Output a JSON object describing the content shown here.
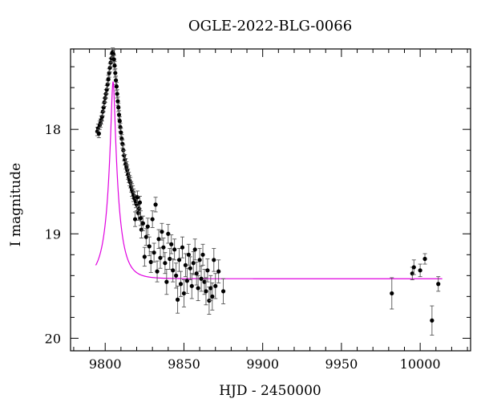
{
  "chart_data": {
    "type": "scatter",
    "title": "OGLE-2022-BLG-0066",
    "xlabel": "HJD - 2450000",
    "ylabel": "I magnitude",
    "xlim": [
      9778,
      10032
    ],
    "ylim": [
      17.23,
      20.12
    ],
    "y_inverted": true,
    "x_ticks": [
      9800,
      9850,
      9900,
      9950,
      10000
    ],
    "y_ticks": [
      18,
      19,
      20
    ],
    "grid": false,
    "colors": {
      "points": "#000000",
      "model": "#e000e0"
    },
    "series": [
      {
        "type": "errorbar-points",
        "points": [
          [
            9795.0,
            18.02,
            0.04
          ],
          [
            9795.5,
            17.99,
            0.04
          ],
          [
            9796.0,
            18.04,
            0.04
          ],
          [
            9796.5,
            17.96,
            0.04
          ],
          [
            9797.0,
            17.94,
            0.04
          ],
          [
            9797.5,
            17.91,
            0.04
          ],
          [
            9798.0,
            17.88,
            0.04
          ],
          [
            9798.5,
            17.83,
            0.04
          ],
          [
            9799.0,
            17.79,
            0.04
          ],
          [
            9799.5,
            17.74,
            0.04
          ],
          [
            9800.0,
            17.7,
            0.04
          ],
          [
            9800.5,
            17.66,
            0.04
          ],
          [
            9801.0,
            17.62,
            0.04
          ],
          [
            9801.5,
            17.57,
            0.04
          ],
          [
            9802.0,
            17.52,
            0.04
          ],
          [
            9802.5,
            17.46,
            0.04
          ],
          [
            9803.0,
            17.41,
            0.04
          ],
          [
            9803.5,
            17.36,
            0.04
          ],
          [
            9804.0,
            17.32,
            0.04
          ],
          [
            9804.4,
            17.27,
            0.04
          ],
          [
            9804.8,
            17.26,
            0.04
          ],
          [
            9805.2,
            17.28,
            0.04
          ],
          [
            9805.6,
            17.33,
            0.04
          ],
          [
            9806.0,
            17.39,
            0.04
          ],
          [
            9806.4,
            17.46,
            0.04
          ],
          [
            9806.8,
            17.53,
            0.04
          ],
          [
            9807.2,
            17.59,
            0.04
          ],
          [
            9807.6,
            17.66,
            0.04
          ],
          [
            9808.0,
            17.73,
            0.04
          ],
          [
            9808.4,
            17.79,
            0.04
          ],
          [
            9808.8,
            17.86,
            0.04
          ],
          [
            9809.2,
            17.92,
            0.04
          ],
          [
            9809.6,
            17.98,
            0.04
          ],
          [
            9810.0,
            18.03,
            0.04
          ],
          [
            9810.5,
            18.09,
            0.04
          ],
          [
            9811.0,
            18.14,
            0.04
          ],
          [
            9811.5,
            18.2,
            0.05
          ],
          [
            9812.0,
            18.25,
            0.05
          ],
          [
            9812.5,
            18.29,
            0.05
          ],
          [
            9813.0,
            18.33,
            0.05
          ],
          [
            9813.5,
            18.36,
            0.05
          ],
          [
            9814.0,
            18.39,
            0.05
          ],
          [
            9814.5,
            18.43,
            0.05
          ],
          [
            9815.0,
            18.46,
            0.05
          ],
          [
            9815.5,
            18.49,
            0.05
          ],
          [
            9816.0,
            18.51,
            0.05
          ],
          [
            9816.5,
            18.55,
            0.05
          ],
          [
            9817.0,
            18.58,
            0.06
          ],
          [
            9817.5,
            18.6,
            0.06
          ],
          [
            9818.0,
            18.63,
            0.06
          ],
          [
            9818.5,
            18.66,
            0.06
          ],
          [
            9819.0,
            18.86,
            0.07
          ],
          [
            9819.5,
            18.69,
            0.06
          ],
          [
            9820.0,
            18.72,
            0.06
          ],
          [
            9820.5,
            18.65,
            0.06
          ],
          [
            9821.0,
            18.8,
            0.07
          ],
          [
            9821.5,
            18.76,
            0.06
          ],
          [
            9822.0,
            18.7,
            0.06
          ],
          [
            9822.5,
            18.85,
            0.07
          ],
          [
            9823.0,
            18.96,
            0.08
          ],
          [
            9824.0,
            18.9,
            0.07
          ],
          [
            9825.0,
            19.22,
            0.09
          ],
          [
            9826.0,
            19.03,
            0.08
          ],
          [
            9827.0,
            18.93,
            0.08
          ],
          [
            9828.0,
            19.12,
            0.09
          ],
          [
            9829.0,
            19.27,
            0.1
          ],
          [
            9830.0,
            18.86,
            0.08
          ],
          [
            9831.0,
            19.18,
            0.09
          ],
          [
            9832.0,
            18.72,
            0.07
          ],
          [
            9833.0,
            19.36,
            0.1
          ],
          [
            9834.0,
            19.05,
            0.09
          ],
          [
            9835.0,
            19.23,
            0.1
          ],
          [
            9836.0,
            18.98,
            0.08
          ],
          [
            9837.0,
            19.13,
            0.09
          ],
          [
            9838.0,
            19.28,
            0.1
          ],
          [
            9839.0,
            19.46,
            0.12
          ],
          [
            9840.0,
            19.0,
            0.09
          ],
          [
            9841.0,
            19.24,
            0.1
          ],
          [
            9842.0,
            19.1,
            0.09
          ],
          [
            9843.0,
            19.35,
            0.11
          ],
          [
            9844.0,
            19.15,
            0.1
          ],
          [
            9845.0,
            19.4,
            0.12
          ],
          [
            9846.0,
            19.63,
            0.13
          ],
          [
            9847.0,
            19.25,
            0.11
          ],
          [
            9848.0,
            19.48,
            0.12
          ],
          [
            9849.0,
            19.13,
            0.1
          ],
          [
            9850.0,
            19.57,
            0.13
          ],
          [
            9851.0,
            19.3,
            0.11
          ],
          [
            9852.0,
            19.45,
            0.12
          ],
          [
            9853.0,
            19.2,
            0.1
          ],
          [
            9854.0,
            19.33,
            0.11
          ],
          [
            9855.0,
            19.5,
            0.12
          ],
          [
            9856.0,
            19.28,
            0.11
          ],
          [
            9857.0,
            19.15,
            0.1
          ],
          [
            9858.0,
            19.38,
            0.11
          ],
          [
            9859.0,
            19.52,
            0.12
          ],
          [
            9860.0,
            19.25,
            0.11
          ],
          [
            9861.0,
            19.43,
            0.12
          ],
          [
            9862.0,
            19.2,
            0.1
          ],
          [
            9863.0,
            19.46,
            0.12
          ],
          [
            9864.0,
            19.55,
            0.13
          ],
          [
            9865.0,
            19.35,
            0.11
          ],
          [
            9866.0,
            19.64,
            0.13
          ],
          [
            9867.0,
            19.52,
            0.12
          ],
          [
            9868.0,
            19.6,
            0.13
          ],
          [
            9869.0,
            19.25,
            0.11
          ],
          [
            9870.0,
            19.5,
            0.12
          ],
          [
            9872.0,
            19.36,
            0.11
          ],
          [
            9875.0,
            19.55,
            0.12
          ],
          [
            9982.0,
            19.57,
            0.15
          ],
          [
            9995.0,
            19.38,
            0.06
          ],
          [
            9996.0,
            19.32,
            0.07
          ],
          [
            10000.0,
            19.35,
            0.06
          ],
          [
            10003.0,
            19.24,
            0.05
          ],
          [
            10007.5,
            19.83,
            0.14
          ],
          [
            10011.5,
            19.48,
            0.07
          ]
        ]
      },
      {
        "type": "model-curve",
        "model": {
          "t0": 9805.0,
          "tE": 7.8,
          "u0": 0.15,
          "baseline": 19.43,
          "fs": 0.82
        },
        "x_range": [
          9794,
          10014
        ]
      }
    ]
  }
}
